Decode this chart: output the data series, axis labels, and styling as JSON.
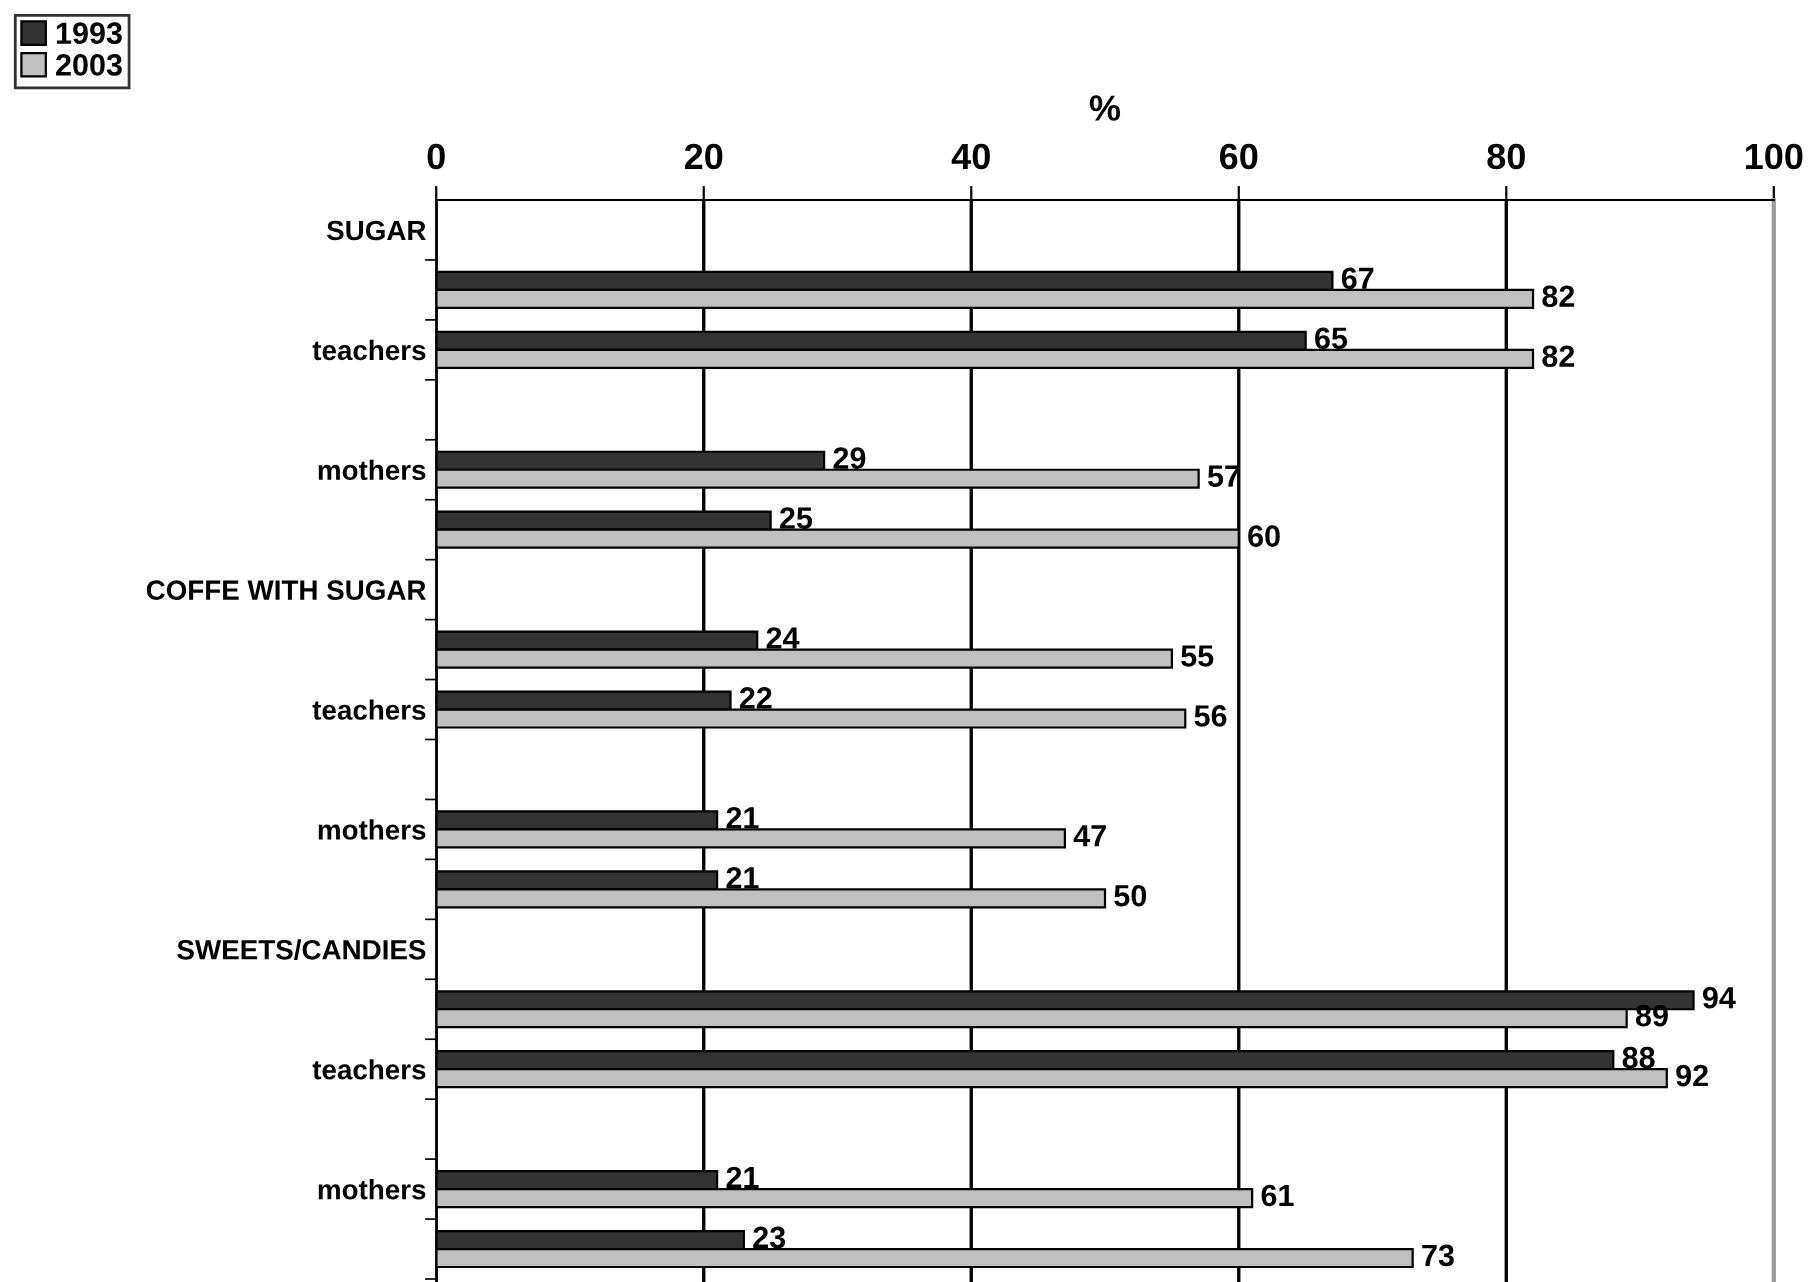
{
  "chart_data": {
    "type": "bar",
    "orientation": "horizontal",
    "xlabel": "%",
    "categories": [
      "SUGAR",
      null,
      "teachers",
      null,
      "mothers",
      null,
      "COFFE WITH SUGAR",
      null,
      "teachers",
      null,
      "mothers",
      null,
      "SWEETS/CANDIES",
      null,
      "teachers",
      null,
      "mothers",
      null
    ],
    "series": [
      {
        "name": "1993",
        "color": "#333333",
        "values": [
          null,
          67,
          65,
          null,
          29,
          25,
          null,
          24,
          22,
          null,
          21,
          21,
          null,
          94,
          88,
          null,
          21,
          23
        ]
      },
      {
        "name": "2003",
        "color": "#c0c0c0",
        "values": [
          null,
          82,
          82,
          null,
          57,
          60,
          null,
          55,
          56,
          null,
          47,
          50,
          null,
          89,
          92,
          null,
          61,
          73
        ]
      }
    ],
    "xlim": [
      0,
      100
    ],
    "xticks": [
      0,
      20,
      40,
      60,
      80,
      100
    ],
    "grid": "x",
    "legend": "top left",
    "data_labels": true
  }
}
